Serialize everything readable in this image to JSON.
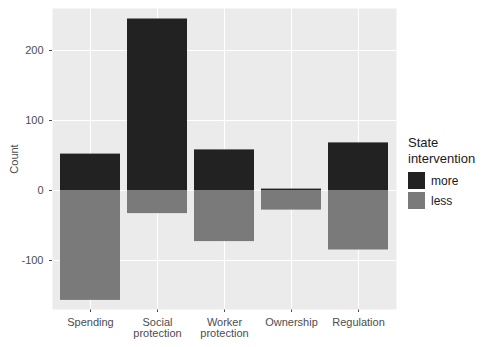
{
  "chart_data": {
    "type": "bar",
    "categories": [
      "Spending",
      "Social\nprotection",
      "Worker\nprotection",
      "Ownership",
      "Regulation"
    ],
    "series": [
      {
        "name": "more",
        "color": "#222222",
        "values": [
          52,
          245,
          58,
          2,
          68
        ]
      },
      {
        "name": "less",
        "color": "#7a7a7a",
        "values": [
          -157,
          -33,
          -73,
          -28,
          -85
        ]
      }
    ],
    "y_label": "Count",
    "legend_title": "State\nintervention",
    "legend": "right",
    "stacked": true,
    "ylim": [
      -170,
      260
    ],
    "yticks": [
      -100,
      0,
      100,
      200
    ],
    "grid": true
  }
}
